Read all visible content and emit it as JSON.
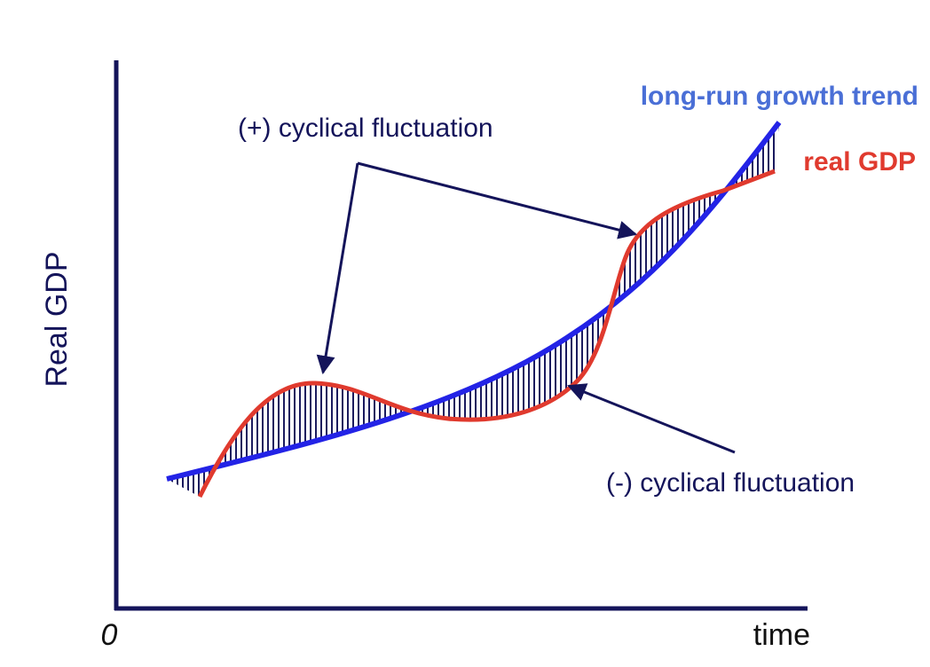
{
  "axis": {
    "y_label": "Real GDP",
    "x_label": "time",
    "origin": "0"
  },
  "labels": {
    "trend": "long-run growth trend",
    "real_gdp": "real GDP",
    "positive": "(+) cyclical fluctuation",
    "negative": "(-) cyclical fluctuation"
  }
}
